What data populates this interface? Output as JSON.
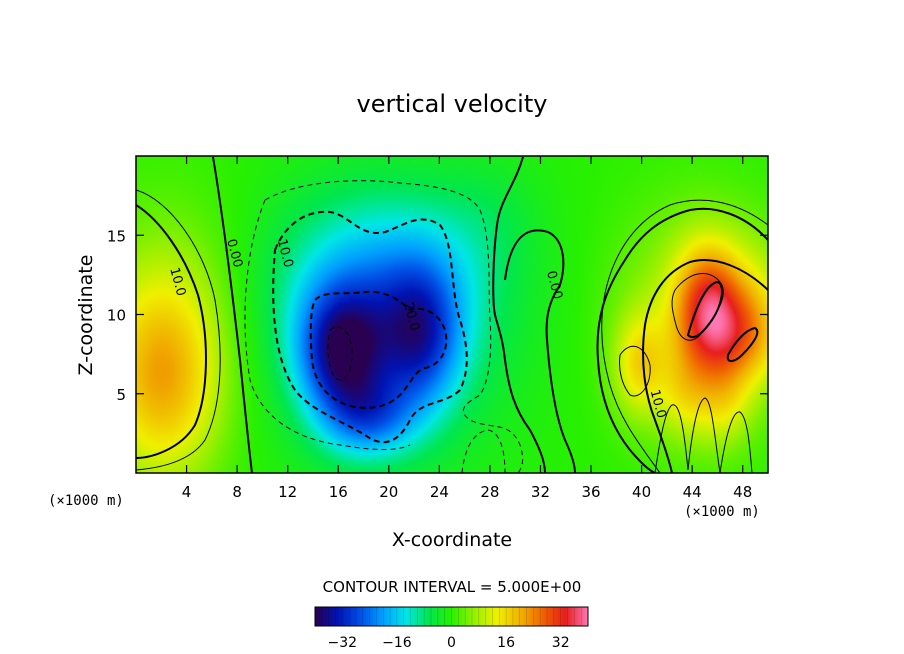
{
  "chart_data": {
    "type": "heatmap",
    "title": "vertical velocity",
    "xlabel": "X-coordinate",
    "ylabel": "Z-coordinate",
    "x_unit_left": "(×1000 m)",
    "x_unit_right": "(×1000 m)",
    "xlim": [
      0,
      50
    ],
    "ylim": [
      0,
      20
    ],
    "x_ticks": [
      4,
      8,
      12,
      16,
      20,
      24,
      28,
      32,
      36,
      40,
      44,
      48
    ],
    "y_ticks": [
      5,
      10,
      15
    ],
    "contour_interval_text": "CONTOUR INTERVAL = 5.000E+00",
    "contour_interval": 5.0,
    "contour_labels": [
      {
        "text": "10.0",
        "x": 3.0,
        "z": 12.0
      },
      {
        "text": "0.00",
        "x": 7.5,
        "z": 13.8
      },
      {
        "text": "10.0",
        "x": 11.5,
        "z": 13.8
      },
      {
        "text": "20.0",
        "x": 21.5,
        "z": 9.8
      },
      {
        "text": "0.00",
        "x": 32.8,
        "z": 11.8
      },
      {
        "text": "10.0",
        "x": 41.0,
        "z": 4.3
      }
    ],
    "colorbar": {
      "range": [
        -40,
        40
      ],
      "ticks": [
        -32,
        -16,
        0,
        16,
        32
      ],
      "colors": [
        "#2a0050",
        "#0014b4",
        "#0050e6",
        "#00a0ff",
        "#00e6e6",
        "#00e650",
        "#28f000",
        "#96f000",
        "#f0f000",
        "#f0b400",
        "#f06400",
        "#e61e1e",
        "#ff78b4"
      ]
    },
    "features": [
      {
        "x": 16.3,
        "z": 7.5,
        "peak": -28,
        "note": "strongest downdraft"
      },
      {
        "x": 22.5,
        "z": 8.5,
        "peak": -22
      },
      {
        "x": 18.5,
        "z": 3.5,
        "peak": -18
      },
      {
        "x": 20,
        "z": 13.5,
        "peak": -10
      },
      {
        "x": 2,
        "z": 6,
        "peak": 16,
        "note": "left updraft"
      },
      {
        "x": 45.3,
        "z": 10.5,
        "peak": 26,
        "note": "strongest updraft"
      },
      {
        "x": 48.5,
        "z": 8.5,
        "peak": 16
      },
      {
        "x": 39.8,
        "z": 6.5,
        "peak": 14
      },
      {
        "x": 44,
        "z": 5,
        "peak": 10
      },
      {
        "x": 46.5,
        "z": 4.5,
        "peak": 10
      }
    ]
  }
}
